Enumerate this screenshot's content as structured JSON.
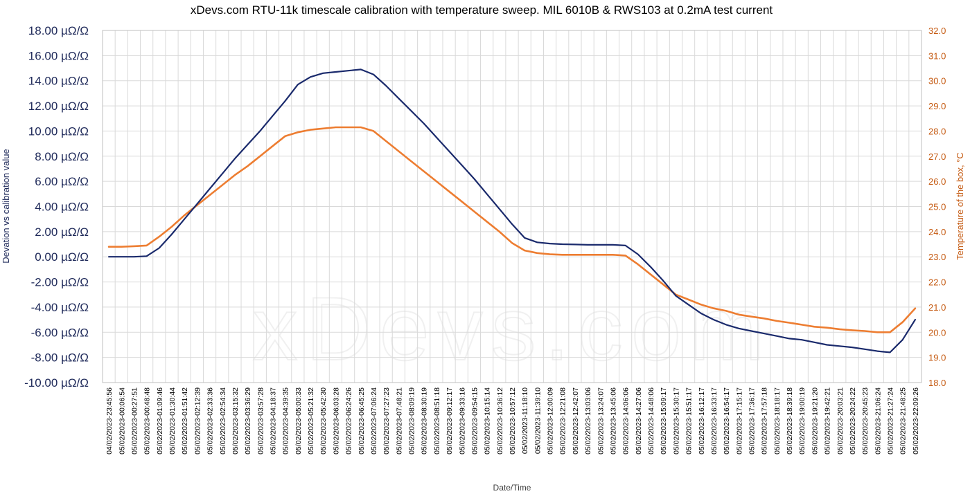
{
  "chart_data": {
    "type": "line",
    "title": "xDevs.com RTU-11k timescale calibration with temperature sweep. MIL 6010B & RWS103 at 0.2mA test current",
    "xlabel": "Date/Time",
    "ylabel_left": "Devation vs calibration value",
    "ylabel_right": "Temperature of the box, °C",
    "watermark": "xDevs.com",
    "grid": true,
    "y_left": {
      "min": -10,
      "max": 18,
      "step": 2,
      "tick_labels": [
        "-10.00 µΩ/Ω",
        "-8.00 µΩ/Ω",
        "-6.00 µΩ/Ω",
        "-4.00 µΩ/Ω",
        "-2.00 µΩ/Ω",
        "0.00 µΩ/Ω",
        "2.00 µΩ/Ω",
        "4.00 µΩ/Ω",
        "6.00 µΩ/Ω",
        "8.00 µΩ/Ω",
        "10.00 µΩ/Ω",
        "12.00 µΩ/Ω",
        "14.00 µΩ/Ω",
        "16.00 µΩ/Ω",
        "18.00 µΩ/Ω"
      ]
    },
    "y_right": {
      "min": 18,
      "max": 32,
      "step": 1,
      "tick_labels": [
        "18.0",
        "19.0",
        "20.0",
        "21.0",
        "22.0",
        "23.0",
        "24.0",
        "25.0",
        "26.0",
        "27.0",
        "28.0",
        "29.0",
        "30.0",
        "31.0",
        "32.0"
      ]
    },
    "categories": [
      "04/02/2023-23:45:56",
      "05/02/2023-00:06:54",
      "05/02/2023-00:27:51",
      "05/02/2023-00:48:48",
      "05/02/2023-01:09:46",
      "05/02/2023-01:30:44",
      "05/02/2023-01:51:42",
      "05/02/2023-02:12:39",
      "05/02/2023-02:33:36",
      "05/02/2023-02:54:34",
      "05/02/2023-03:15:32",
      "05/02/2023-03:36:29",
      "05/02/2023-03:57:28",
      "05/02/2023-04:18:37",
      "05/02/2023-04:39:35",
      "05/02/2023-05:00:33",
      "05/02/2023-05:21:32",
      "05/02/2023-05:42:30",
      "05/02/2023-06:03:28",
      "05/02/2023-06:24:26",
      "05/02/2023-06:45:25",
      "05/02/2023-07:06:24",
      "05/02/2023-07:27:23",
      "05/02/2023-07:48:21",
      "05/02/2023-08:09:19",
      "05/02/2023-08:30:19",
      "05/02/2023-08:51:18",
      "05/02/2023-09:12:17",
      "05/02/2023-09:33:16",
      "05/02/2023-09:54:15",
      "05/02/2023-10:15:14",
      "05/02/2023-10:36:12",
      "05/02/2023-10:57:12",
      "05/02/2023-11:18:10",
      "05/02/2023-11:39:10",
      "05/02/2023-12:00:09",
      "05/02/2023-12:21:08",
      "05/02/2023-12:42:07",
      "05/02/2023-13:03:06",
      "05/02/2023-13:24:07",
      "05/02/2023-13:45:06",
      "05/02/2023-14:06:06",
      "05/02/2023-14:27:06",
      "05/02/2023-14:48:06",
      "05/02/2023-15:09:17",
      "05/02/2023-15:30:17",
      "05/02/2023-15:51:17",
      "05/02/2023-16:12:17",
      "05/02/2023-16:33:17",
      "05/02/2023-16:54:17",
      "05/02/2023-17:15:17",
      "05/02/2023-17:36:17",
      "05/02/2023-17:57:18",
      "05/02/2023-18:18:17",
      "05/02/2023-18:39:18",
      "05/02/2023-19:00:19",
      "05/02/2023-19:21:20",
      "05/02/2023-19:42:21",
      "05/02/2023-20:03:21",
      "05/02/2023-20:24:22",
      "05/02/2023-20:45:23",
      "05/02/2023-21:06:24",
      "05/02/2023-21:27:24",
      "05/02/2023-21:48:25",
      "05/02/2023-22:09:26"
    ],
    "series": [
      {
        "axis": "left",
        "color": "#1a2a6c",
        "values": [
          0.0,
          0.0,
          0.0,
          0.05,
          0.7,
          1.8,
          3.0,
          4.2,
          5.4,
          6.6,
          7.8,
          8.9,
          10.0,
          11.2,
          12.4,
          13.7,
          14.3,
          14.6,
          14.7,
          14.8,
          14.9,
          14.5,
          13.6,
          12.6,
          11.6,
          10.6,
          9.5,
          8.4,
          7.3,
          6.2,
          5.0,
          3.8,
          2.6,
          1.5,
          1.15,
          1.05,
          1.0,
          0.98,
          0.95,
          0.95,
          0.95,
          0.9,
          0.2,
          -0.8,
          -1.9,
          -3.1,
          -3.8,
          -4.5,
          -5.0,
          -5.4,
          -5.7,
          -5.9,
          -6.1,
          -6.3,
          -6.5,
          -6.6,
          -6.8,
          -7.0,
          -7.1,
          -7.2,
          -7.35,
          -7.5,
          -7.6,
          -6.6,
          -5.0
        ]
      },
      {
        "axis": "right",
        "color": "#ed7d31",
        "values": [
          23.4,
          23.4,
          23.42,
          23.45,
          23.8,
          24.2,
          24.65,
          25.05,
          25.45,
          25.85,
          26.25,
          26.6,
          27.0,
          27.4,
          27.8,
          27.95,
          28.05,
          28.1,
          28.15,
          28.15,
          28.15,
          28.0,
          27.6,
          27.2,
          26.8,
          26.4,
          26.0,
          25.6,
          25.2,
          24.8,
          24.4,
          24.0,
          23.55,
          23.25,
          23.15,
          23.1,
          23.08,
          23.08,
          23.08,
          23.08,
          23.08,
          23.05,
          22.7,
          22.3,
          21.9,
          21.5,
          21.3,
          21.1,
          20.95,
          20.85,
          20.7,
          20.62,
          20.55,
          20.45,
          20.38,
          20.3,
          20.22,
          20.18,
          20.12,
          20.08,
          20.05,
          20.0,
          20.0,
          20.4,
          20.95
        ]
      }
    ]
  }
}
